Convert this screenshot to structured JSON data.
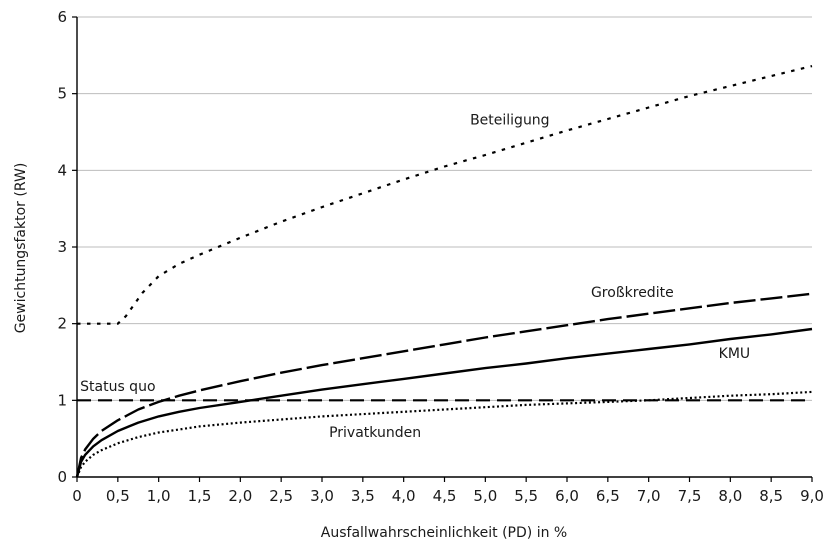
{
  "chart_data": {
    "type": "line",
    "title": "",
    "xlabel": "Ausfallwahrscheinlichkeit (PD) in %",
    "ylabel": "Gewichtungsfaktor (RW)",
    "xlim": [
      0,
      9
    ],
    "ylim": [
      0,
      6
    ],
    "x_ticks": [
      "0",
      "0,5",
      "1,0",
      "1,5",
      "2,0",
      "2,5",
      "3,0",
      "3,5",
      "4,0",
      "4,5",
      "5,0",
      "5,5",
      "6,0",
      "6,5",
      "7,0",
      "7,5",
      "8,0",
      "8,5",
      "9,0"
    ],
    "y_ticks": [
      "0",
      "1",
      "2",
      "3",
      "4",
      "5",
      "6"
    ],
    "grid": "horizontal",
    "series": [
      {
        "name": "Beteiligung",
        "line_style": "dotted",
        "x": [
          0,
          0.5,
          0.6,
          0.8,
          1.0,
          1.25,
          1.5,
          2.0,
          2.5,
          3.0,
          3.5,
          4.0,
          4.5,
          5.0,
          5.5,
          6.0,
          6.5,
          7.0,
          7.5,
          8.0,
          8.5,
          9.0
        ],
        "y": [
          2.0,
          2.0,
          2.1,
          2.4,
          2.62,
          2.78,
          2.9,
          3.12,
          3.33,
          3.52,
          3.7,
          3.88,
          4.05,
          4.2,
          4.36,
          4.52,
          4.67,
          4.82,
          4.97,
          5.1,
          5.23,
          5.36
        ]
      },
      {
        "name": "Großkredite",
        "line_style": "long-dash",
        "x": [
          0,
          0.05,
          0.1,
          0.2,
          0.3,
          0.5,
          0.75,
          1.0,
          1.25,
          1.5,
          2.0,
          2.5,
          3.0,
          3.5,
          4.0,
          4.5,
          5.0,
          5.5,
          6.0,
          6.5,
          7.0,
          7.5,
          8.0,
          8.5,
          9.0
        ],
        "y": [
          0.0,
          0.25,
          0.36,
          0.5,
          0.6,
          0.74,
          0.88,
          0.98,
          1.06,
          1.13,
          1.25,
          1.36,
          1.46,
          1.55,
          1.64,
          1.73,
          1.82,
          1.9,
          1.98,
          2.06,
          2.13,
          2.2,
          2.27,
          2.33,
          2.39
        ]
      },
      {
        "name": "KMU",
        "line_style": "solid",
        "x": [
          0,
          0.05,
          0.1,
          0.2,
          0.3,
          0.5,
          0.75,
          1.0,
          1.25,
          1.5,
          2.0,
          2.5,
          3.0,
          3.5,
          4.0,
          4.5,
          5.0,
          5.5,
          6.0,
          6.5,
          7.0,
          7.5,
          8.0,
          8.5,
          9.0
        ],
        "y": [
          0.0,
          0.2,
          0.29,
          0.4,
          0.48,
          0.6,
          0.71,
          0.79,
          0.85,
          0.9,
          0.98,
          1.06,
          1.14,
          1.21,
          1.28,
          1.35,
          1.42,
          1.48,
          1.55,
          1.61,
          1.67,
          1.73,
          1.8,
          1.86,
          1.93
        ]
      },
      {
        "name": "Privatkunden",
        "line_style": "fine-dotted",
        "x": [
          0,
          0.05,
          0.1,
          0.2,
          0.3,
          0.5,
          0.75,
          1.0,
          1.25,
          1.5,
          2.0,
          2.5,
          3.0,
          3.5,
          4.0,
          4.5,
          5.0,
          5.5,
          6.0,
          6.5,
          7.0,
          7.5,
          8.0,
          8.5,
          9.0
        ],
        "y": [
          0.0,
          0.13,
          0.2,
          0.29,
          0.35,
          0.44,
          0.52,
          0.58,
          0.62,
          0.66,
          0.71,
          0.75,
          0.79,
          0.82,
          0.85,
          0.88,
          0.91,
          0.94,
          0.96,
          0.98,
          1.0,
          1.03,
          1.06,
          1.08,
          1.11
        ]
      },
      {
        "name": "Status quo",
        "line_style": "dashed",
        "x": [
          0,
          9
        ],
        "y": [
          1.0,
          1.0
        ]
      }
    ],
    "annotations": [
      {
        "text": "Beteiligung",
        "x": 5.3,
        "y": 4.6
      },
      {
        "text": "Großkredite",
        "x": 6.8,
        "y": 2.35
      },
      {
        "text": "KMU",
        "x": 8.05,
        "y": 1.55
      },
      {
        "text": "Status quo",
        "x": 0.5,
        "y": 1.12
      },
      {
        "text": "Privatkunden",
        "x": 3.65,
        "y": 0.52
      }
    ]
  }
}
